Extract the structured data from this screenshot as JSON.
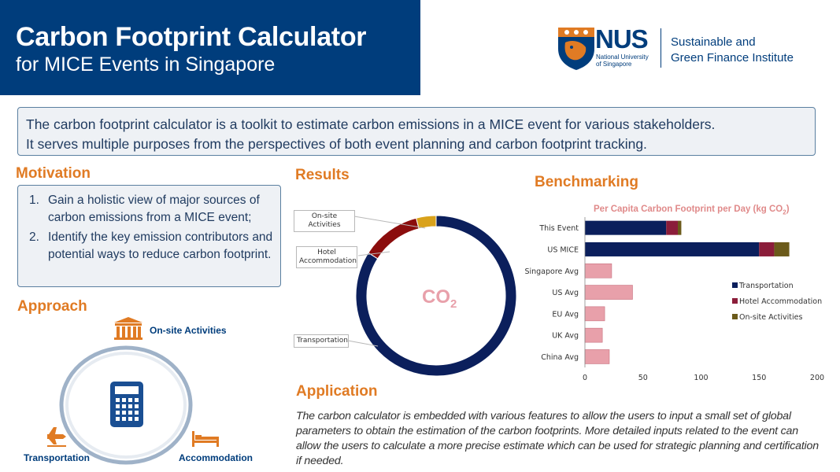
{
  "header": {
    "title": "Carbon Footprint Calculator",
    "subtitle": "for MICE Events in Singapore",
    "brand_color": "#003d7c"
  },
  "logo": {
    "acronym": "NUS",
    "university_line1": "National University",
    "university_line2": "of Singapore",
    "institute_line1": "Sustainable and",
    "institute_line2": "Green Finance Institute"
  },
  "intro": {
    "line1": "The carbon footprint calculator is a toolkit to estimate carbon emissions in a MICE event for various stakeholders.",
    "line2": "It serves multiple purposes from the perspectives of both event planning and carbon footprint tracking."
  },
  "motivation": {
    "heading": "Motivation",
    "items": [
      {
        "num": "1.",
        "text": "Gain a holistic view of major sources of carbon emissions from a MICE event;"
      },
      {
        "num": "2.",
        "text": "Identify the key emission contributors and potential ways to reduce carbon footprint."
      }
    ]
  },
  "approach": {
    "heading": "Approach",
    "onsite_label": "On-site Activities",
    "transport_label": "Transportation",
    "accommodation_label": "Accommodation",
    "icons": [
      "building-icon",
      "calculator-icon",
      "airplane-icon",
      "bed-icon"
    ]
  },
  "results": {
    "heading": "Results",
    "center_label": "CO",
    "center_sub": "2",
    "callouts": {
      "onsite": "On-site Activities",
      "hotel_line1": "Hotel",
      "hotel_line2": "Accommodation",
      "transport": "Transportation"
    }
  },
  "benchmarking": {
    "heading": "Benchmarking"
  },
  "application": {
    "heading": "Application",
    "text": "The carbon calculator is embedded with various features to allow the users to input a small set of global parameters to obtain the estimation of the carbon footprints. More detailed inputs related to the event can allow the users to calculate a more precise estimate which can be used for strategic planning and certification if needed."
  },
  "chart_data": [
    {
      "type": "pie",
      "title": "",
      "labels": [
        "Transportation",
        "Hotel Accommodation",
        "On-site Activities"
      ],
      "values": [
        84,
        12,
        4
      ],
      "colors": [
        "#0b1f5c",
        "#8b0d0d",
        "#d9a21b"
      ]
    },
    {
      "type": "bar",
      "orientation": "horizontal",
      "stacked": true,
      "title": "Per Capita Carbon Footprint per Day (kg CO",
      "title_sub": "2",
      "title_tail": ")",
      "categories": [
        "This Event",
        "US MICE",
        "Singapore Avg",
        "US Avg",
        "EU Avg",
        "UK Avg",
        "China Avg"
      ],
      "series": [
        {
          "name": "Transportation",
          "color": "#0b1f5c",
          "values": [
            70,
            150,
            0,
            0,
            0,
            0,
            0
          ]
        },
        {
          "name": "Hotel Accommodation",
          "color": "#8b1d3a",
          "values": [
            10,
            13,
            0,
            0,
            0,
            0,
            0
          ]
        },
        {
          "name": "On-site Activities",
          "color": "#6b5a1a",
          "values": [
            3,
            13,
            0,
            0,
            0,
            0,
            0
          ]
        },
        {
          "name": "",
          "color": "#e8a0aa",
          "values": [
            0,
            0,
            23,
            41,
            17,
            15,
            21
          ]
        }
      ],
      "xticks": [
        "0",
        "50",
        "100",
        "150",
        "200"
      ],
      "xlim": [
        0,
        200
      ],
      "legend_position": "right"
    }
  ]
}
